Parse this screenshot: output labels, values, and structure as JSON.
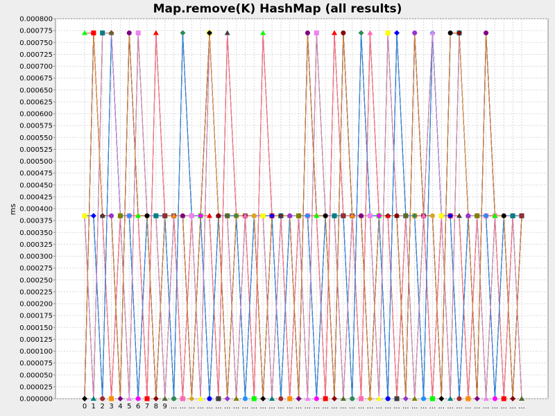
{
  "chart_data": {
    "type": "line",
    "title": "Map.remove(K) HashMap (all results)",
    "xlabel": "",
    "ylabel": "ms",
    "ylim": [
      0,
      0.0008
    ],
    "y_ticks": [
      "0.000000",
      "0.000025",
      "0.000050",
      "0.000075",
      "0.000100",
      "0.000125",
      "0.000150",
      "0.000175",
      "0.000200",
      "0.000225",
      "0.000250",
      "0.000275",
      "0.000300",
      "0.000325",
      "0.000350",
      "0.000375",
      "0.000400",
      "0.000425",
      "0.000450",
      "0.000475",
      "0.000500",
      "0.000525",
      "0.000550",
      "0.000575",
      "0.000600",
      "0.000625",
      "0.000650",
      "0.000675",
      "0.000700",
      "0.000725",
      "0.000750",
      "0.000775",
      "0.000800"
    ],
    "x_tick_labels": [
      "0",
      "1",
      "2",
      "3",
      "4",
      "5",
      "6",
      "7",
      "8",
      "9",
      "...",
      "...",
      "...",
      "...",
      "...",
      "...",
      "...",
      "...",
      "...",
      "...",
      "...",
      "...",
      "...",
      "...",
      "...",
      "...",
      "...",
      "...",
      "...",
      "...",
      "...",
      "...",
      "...",
      "...",
      "...",
      "...",
      "...",
      "...",
      "...",
      "...",
      "...",
      "...",
      "...",
      "...",
      "...",
      "...",
      "...",
      "...",
      "...",
      "..."
    ],
    "grid": true,
    "legend": "none",
    "series_colors": [
      "#00ff00",
      "#ff00ff",
      "#ffff00",
      "#000000",
      "#ff0000",
      "#0000ff",
      "#008080",
      "#8b0000",
      "#404040",
      "#a52a2a",
      "#556b2f",
      "#9932cc",
      "#ff8c00",
      "#2e8b57",
      "#808000",
      "#800080",
      "#ff69b4",
      "#1e90ff",
      "#ee82ee",
      "#daa520"
    ],
    "values_per_x": [
      [
        0.00077,
        0.000385,
        0.000385,
        0.0
      ],
      [
        0.00077,
        0.00077,
        0.000385,
        0.0
      ],
      [
        0.00077,
        0.000385,
        0.000385,
        0.0
      ],
      [
        0.00077,
        0.00077,
        0.000385,
        0.0
      ],
      [
        0.000385,
        0.000385,
        0.000385,
        0.0
      ],
      [
        0.00077,
        0.000385,
        0.000385,
        0.0
      ],
      [
        0.00077,
        0.000385,
        0.000385,
        0.0
      ],
      [
        0.000385,
        0.000385,
        0.000385,
        0.0
      ],
      [
        0.00077,
        0.000385,
        0.000385,
        0.0
      ],
      [
        0.000385,
        0.000385,
        0.000385,
        0.0
      ],
      [
        0.000385,
        0.000385,
        0.000385,
        0.0
      ],
      [
        0.00077,
        0.000385,
        0.000385,
        0.0
      ],
      [
        0.000385,
        0.000385,
        0.000385,
        0.0
      ],
      [
        0.000385,
        0.000385,
        0.000385,
        0.0
      ],
      [
        0.00077,
        0.00077,
        0.000385,
        0.0
      ],
      [
        0.000385,
        0.000385,
        0.000385,
        0.0
      ],
      [
        0.00077,
        0.000385,
        0.000385,
        0.0
      ],
      [
        0.000385,
        0.000385,
        0.000385,
        0.0
      ],
      [
        0.000385,
        0.000385,
        0.000385,
        0.0
      ],
      [
        0.000385,
        0.000385,
        0.000385,
        0.0
      ],
      [
        0.00077,
        0.000385,
        0.000385,
        0.0
      ],
      [
        0.000385,
        0.000385,
        0.000385,
        0.0
      ],
      [
        0.000385,
        0.000385,
        0.000385,
        0.0
      ],
      [
        0.000385,
        0.000385,
        0.000385,
        0.0
      ],
      [
        0.000385,
        0.000385,
        0.000385,
        0.0
      ],
      [
        0.00077,
        0.000385,
        0.000385,
        0.0
      ],
      [
        0.00077,
        0.000385,
        0.000385,
        0.0
      ],
      [
        0.000385,
        0.000385,
        0.000385,
        0.0
      ],
      [
        0.00077,
        0.000385,
        0.000385,
        0.0
      ],
      [
        0.00077,
        0.000385,
        0.000385,
        0.0
      ],
      [
        0.000385,
        0.000385,
        0.000385,
        0.0
      ],
      [
        0.00077,
        0.000385,
        0.000385,
        0.0
      ],
      [
        0.00077,
        0.000385,
        0.000385,
        0.0
      ],
      [
        0.000385,
        0.000385,
        0.000385,
        0.0
      ],
      [
        0.00077,
        0.000385,
        0.000385,
        0.0
      ],
      [
        0.00077,
        0.000385,
        0.000385,
        0.0
      ],
      [
        0.000385,
        0.000385,
        0.000385,
        0.0
      ],
      [
        0.00077,
        0.000385,
        0.000385,
        0.0
      ],
      [
        0.000385,
        0.000385,
        0.000385,
        0.0
      ],
      [
        0.00077,
        0.00077,
        0.000385,
        0.0
      ],
      [
        0.000385,
        0.000385,
        0.000385,
        0.0
      ],
      [
        0.00077,
        0.000385,
        0.000385,
        0.0
      ],
      [
        0.00077,
        0.00077,
        0.000385,
        0.0
      ],
      [
        0.000385,
        0.000385,
        0.000385,
        0.0
      ],
      [
        0.000385,
        0.000385,
        0.000385,
        0.0
      ],
      [
        0.00077,
        0.000385,
        0.000385,
        0.0
      ],
      [
        0.000385,
        0.000385,
        0.000385,
        0.0
      ],
      [
        0.000385,
        0.000385,
        0.000385,
        0.0
      ],
      [
        0.000385,
        0.000385,
        0.000385,
        0.0
      ],
      [
        0.000385,
        0.000385,
        0.000385,
        0.0
      ]
    ]
  }
}
